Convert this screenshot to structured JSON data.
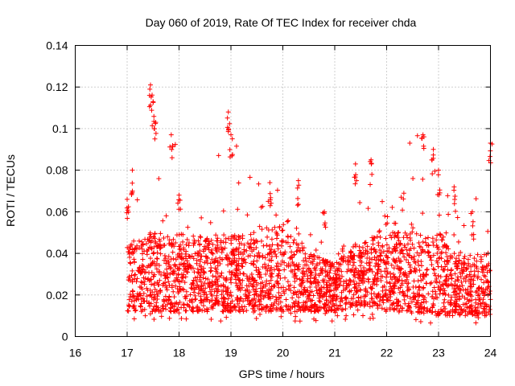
{
  "chart_data": {
    "type": "scatter",
    "title": "Day 060 of 2019, Rate Of TEC Index for receiver chda",
    "xlabel": "GPS time / hours",
    "ylabel": "ROTI / TECUs",
    "xlim": [
      16,
      24
    ],
    "ylim": [
      0,
      0.14
    ],
    "xticks": [
      "16",
      "17",
      "18",
      "19",
      "20",
      "21",
      "22",
      "23",
      "24"
    ],
    "yticks": [
      "0",
      "0.02",
      "0.04",
      "0.06",
      "0.08",
      "0.1",
      "0.12",
      "0.14"
    ],
    "marker": "+",
    "grid": true,
    "series": [
      {
        "name": "ROTI",
        "color": "#ff0000",
        "envelope": {
          "x": [
            17.0,
            17.25,
            17.5,
            18.0,
            18.5,
            19.0,
            19.5,
            20.0,
            20.5,
            21.0,
            21.5,
            22.0,
            22.5,
            23.0,
            23.5,
            24.0
          ],
          "typical_low": [
            0.012,
            0.012,
            0.012,
            0.012,
            0.012,
            0.012,
            0.012,
            0.012,
            0.012,
            0.012,
            0.015,
            0.013,
            0.012,
            0.01,
            0.01,
            0.01
          ],
          "typical_high": [
            0.045,
            0.048,
            0.05,
            0.05,
            0.048,
            0.05,
            0.048,
            0.055,
            0.04,
            0.035,
            0.045,
            0.05,
            0.05,
            0.05,
            0.04,
            0.04
          ],
          "max": [
            0.066,
            0.08,
            0.121,
            0.097,
            0.065,
            0.108,
            0.074,
            0.075,
            0.06,
            0.035,
            0.085,
            0.062,
            0.097,
            0.095,
            0.062,
            0.093
          ]
        },
        "peaks": [
          {
            "x": 17.0,
            "y": 0.066
          },
          {
            "x": 17.1,
            "y": 0.08
          },
          {
            "x": 17.45,
            "y": 0.121
          },
          {
            "x": 17.5,
            "y": 0.113
          },
          {
            "x": 17.55,
            "y": 0.103
          },
          {
            "x": 17.85,
            "y": 0.097
          },
          {
            "x": 18.0,
            "y": 0.068
          },
          {
            "x": 18.95,
            "y": 0.108
          },
          {
            "x": 19.0,
            "y": 0.097
          },
          {
            "x": 19.75,
            "y": 0.074
          },
          {
            "x": 20.3,
            "y": 0.075
          },
          {
            "x": 20.8,
            "y": 0.06
          },
          {
            "x": 21.4,
            "y": 0.083
          },
          {
            "x": 21.7,
            "y": 0.085
          },
          {
            "x": 22.7,
            "y": 0.097
          },
          {
            "x": 22.9,
            "y": 0.09
          },
          {
            "x": 23.0,
            "y": 0.08
          },
          {
            "x": 23.3,
            "y": 0.072
          },
          {
            "x": 23.65,
            "y": 0.06
          },
          {
            "x": 24.0,
            "y": 0.093
          }
        ]
      }
    ]
  }
}
